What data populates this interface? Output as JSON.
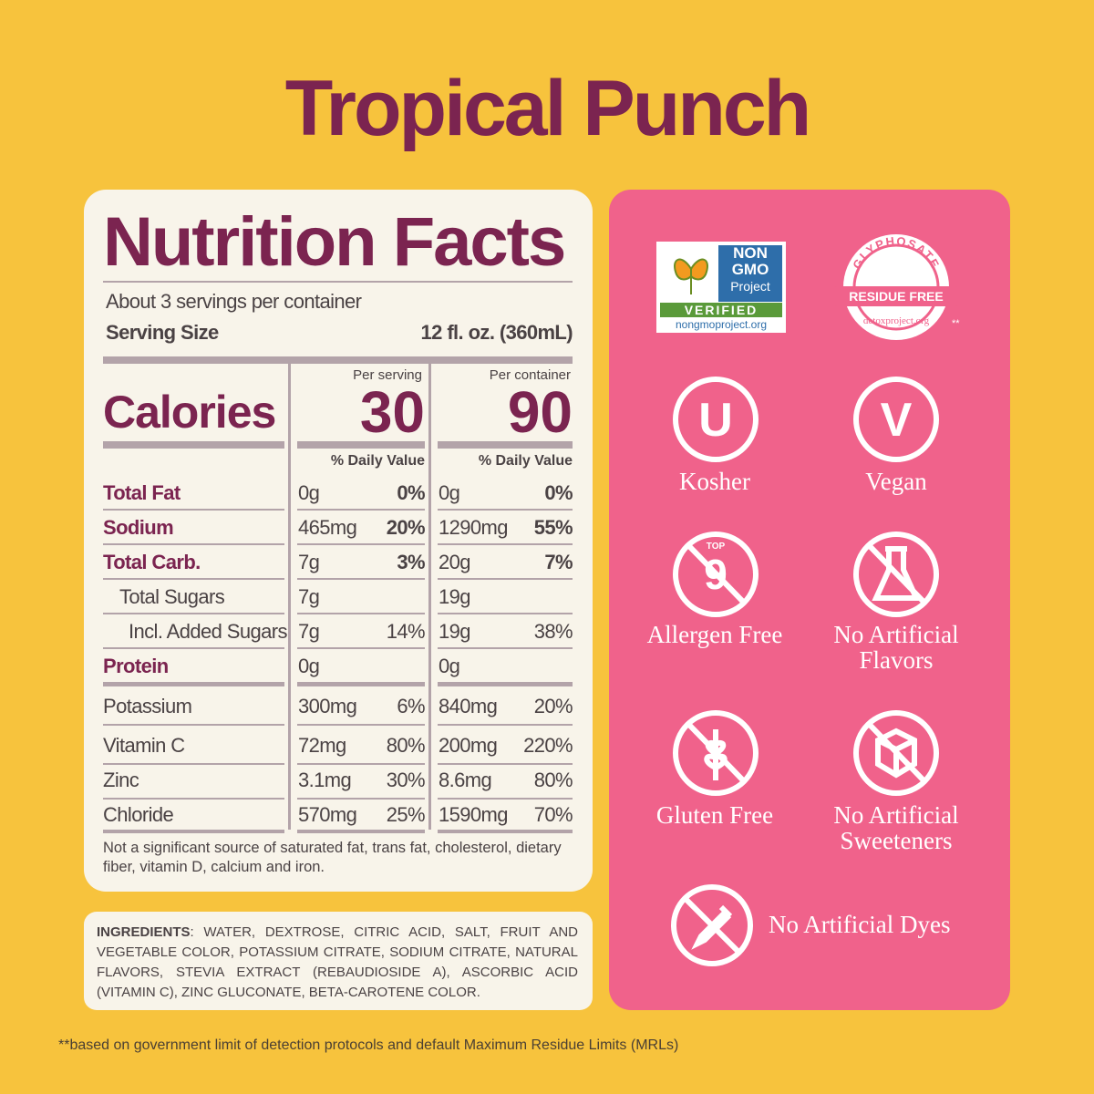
{
  "title": "Tropical Punch",
  "nutrition": {
    "heading": "Nutrition Facts",
    "servings": "About 3 servings per container",
    "serving_size_label": "Serving Size",
    "serving_size_value": "12 fl. oz. (360mL)",
    "per_serving": "Per serving",
    "per_container": "Per container",
    "calories_label": "Calories",
    "calories_serving": "30",
    "calories_container": "90",
    "dv_header": "% Daily Value",
    "rows": [
      {
        "name": "Total Fat",
        "serving": "0g",
        "serving_dv": "0%",
        "container": "0g",
        "container_dv": "0%"
      },
      {
        "name": "Sodium",
        "serving": "465mg",
        "serving_dv": "20%",
        "container": "1290mg",
        "container_dv": "55%"
      },
      {
        "name": "Total Carb.",
        "serving": "7g",
        "serving_dv": "3%",
        "container": "20g",
        "container_dv": "7%"
      },
      {
        "name": "Total Sugars",
        "serving": "7g",
        "container": "19g"
      },
      {
        "name": "Incl. Added Sugars",
        "serving": "7g",
        "serving_dv": "14%",
        "container": "19g",
        "container_dv": "38%"
      },
      {
        "name": "Protein",
        "serving": "0g",
        "container": "0g"
      },
      {
        "name": "Potassium",
        "serving": "300mg",
        "serving_dv": "6%",
        "container": "840mg",
        "container_dv": "20%"
      },
      {
        "name": "Vitamin C",
        "serving": "72mg",
        "serving_dv": "80%",
        "container": "200mg",
        "container_dv": "220%"
      },
      {
        "name": "Zinc",
        "serving": "3.1mg",
        "serving_dv": "30%",
        "container": "8.6mg",
        "container_dv": "80%"
      },
      {
        "name": "Chloride",
        "serving": "570mg",
        "serving_dv": "25%",
        "container": "1590mg",
        "container_dv": "70%"
      }
    ],
    "footnote": "Not a significant source of saturated fat, trans fat, cholesterol, dietary fiber, vitamin D, calcium and iron."
  },
  "ingredients": {
    "label": "INGREDIENTS",
    "text": ": WATER, DEXTROSE, CITRIC ACID,  SALT, FRUIT AND VEGETABLE COLOR, POTASSIUM CITRATE, SODIUM CITRATE, NATURAL FLAVORS,  STEVIA EXTRACT (REBAUDIOSIDE A), ASCORBIC ACID (VITAMIN C), ZINC GLUCONATE, BETA-CAROTENE COLOR."
  },
  "badges": {
    "nongmo": {
      "line1": "NON",
      "line2": "GMO",
      "line3": "Project",
      "verified": "VERIFIED",
      "url": "nongmoproject.org"
    },
    "glyphosate": {
      "arc": "GLYPHOSATE",
      "banner": "RESIDUE FREE",
      "url": "detoxproject.org",
      "mark": "**"
    },
    "kosher": {
      "symbol": "U",
      "label": "Kosher"
    },
    "vegan": {
      "symbol": "V",
      "label": "Vegan"
    },
    "allergen": {
      "top": "TOP",
      "number": "9",
      "label": "Allergen Free"
    },
    "flavors": {
      "label": "No Artificial Flavors"
    },
    "gluten": {
      "label": "Gluten Free"
    },
    "sweeteners": {
      "label": "No Artificial Sweeteners"
    },
    "dyes": {
      "label": "No Artificial Dyes"
    }
  },
  "footer": "**based on government limit of detection protocols and default Maximum Residue Limits (MRLs)"
}
